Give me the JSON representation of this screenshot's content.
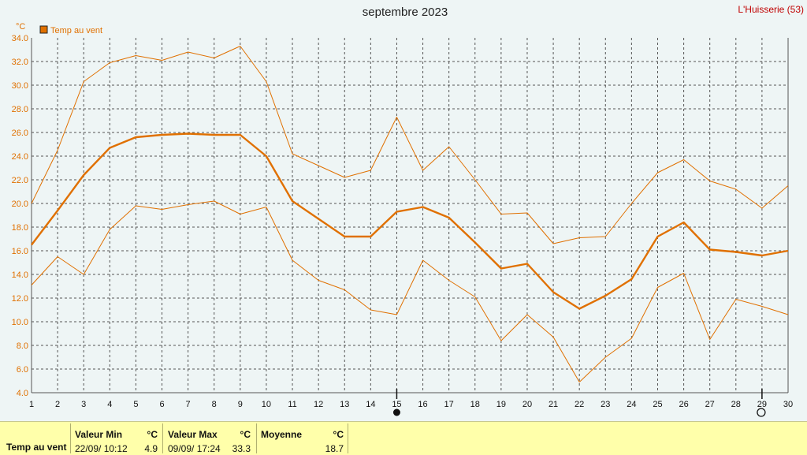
{
  "chart_data": {
    "type": "line",
    "title": "septembre 2023",
    "station": "L'Huisserie (53)",
    "unit_label": "°C",
    "x": [
      1,
      2,
      3,
      4,
      5,
      6,
      7,
      8,
      9,
      10,
      11,
      12,
      13,
      14,
      15,
      16,
      17,
      18,
      19,
      20,
      21,
      22,
      23,
      24,
      25,
      26,
      27,
      28,
      29,
      30
    ],
    "xlim": [
      1,
      30
    ],
    "ylim": [
      4.0,
      34.0
    ],
    "yticks": [
      "4.0",
      "6.0",
      "8.0",
      "10.0",
      "12.0",
      "14.0",
      "16.0",
      "18.0",
      "20.0",
      "22.0",
      "24.0",
      "26.0",
      "28.0",
      "30.0",
      "32.0",
      "34.0"
    ],
    "grid": true,
    "legend": {
      "label": "Temp au vent",
      "placement": "top-left",
      "color": "#e07000"
    },
    "series": [
      {
        "role": "max",
        "color": "#e07000",
        "values": [
          20.0,
          24.5,
          30.3,
          31.9,
          32.5,
          32.1,
          32.8,
          32.3,
          33.3,
          30.3,
          24.2,
          23.2,
          22.2,
          22.8,
          27.3,
          22.8,
          24.8,
          22.0,
          19.1,
          19.2,
          16.6,
          17.1,
          17.2,
          20.0,
          22.6,
          23.7,
          21.9,
          21.2,
          19.6,
          21.5
        ]
      },
      {
        "role": "mean",
        "color": "#e07000",
        "values": [
          16.5,
          19.4,
          22.4,
          24.7,
          25.6,
          25.8,
          25.9,
          25.8,
          25.8,
          24.0,
          20.2,
          18.7,
          17.2,
          17.2,
          19.3,
          19.7,
          18.8,
          16.7,
          14.5,
          14.9,
          12.5,
          11.1,
          12.2,
          13.6,
          17.2,
          18.4,
          16.1,
          15.9,
          15.6,
          16.0
        ]
      },
      {
        "role": "min",
        "color": "#e07000",
        "values": [
          13.1,
          15.5,
          14.0,
          17.8,
          19.8,
          19.5,
          19.9,
          20.2,
          19.1,
          19.7,
          15.2,
          13.5,
          12.7,
          11.0,
          10.6,
          15.2,
          13.5,
          12.1,
          8.4,
          10.6,
          8.7,
          4.9,
          7.0,
          8.6,
          12.9,
          14.1,
          8.5,
          11.9,
          11.3,
          10.6
        ]
      }
    ],
    "moon_phases": [
      {
        "day": 15,
        "phase": "new-moon"
      },
      {
        "day": 29,
        "phase": "full-moon"
      }
    ]
  },
  "stats": {
    "row_label": "Temp au vent",
    "min": {
      "header": "Valeur Min",
      "unit": "°C",
      "datetime": "22/09/  10:12",
      "value": "4.9"
    },
    "max": {
      "header": "Valeur Max",
      "unit": "°C",
      "datetime": "09/09/  17:24",
      "value": "33.3"
    },
    "mean": {
      "header": "Moyenne",
      "unit": "°C",
      "value": "18.7"
    }
  }
}
